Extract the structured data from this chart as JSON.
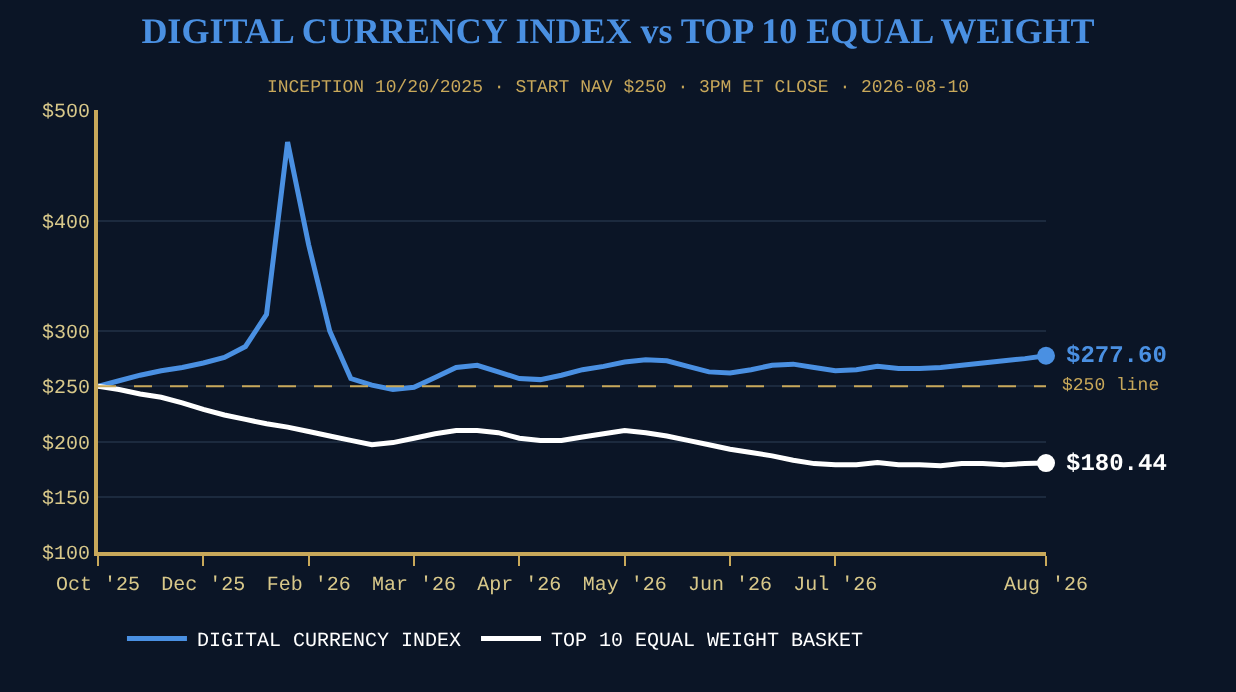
{
  "chart_data": {
    "type": "line",
    "title": "DIGITAL CURRENCY INDEX vs TOP 10 EQUAL WEIGHT",
    "subtitle": "INCEPTION 10/20/2025 · START NAV $250 · 3PM ET CLOSE · 2026-08-10",
    "categories": [
      "Oct '25",
      null,
      null,
      null,
      null,
      "Dec '25",
      null,
      null,
      null,
      null,
      "Feb '26",
      null,
      null,
      null,
      null,
      "Mar '26",
      null,
      null,
      null,
      null,
      "Apr '26",
      null,
      null,
      null,
      null,
      "May '26",
      null,
      null,
      null,
      null,
      "Jun '26",
      null,
      null,
      null,
      null,
      "Jul '26",
      null,
      null,
      null,
      null,
      null,
      null,
      null,
      null,
      null,
      "Aug '26"
    ],
    "series": [
      {
        "name": "DIGITAL CURRENCY INDEX",
        "color": "#4a90e2",
        "values": [
          250,
          255,
          260,
          264,
          267,
          271,
          276,
          286,
          315,
          471,
          378,
          300,
          257,
          251,
          247,
          249,
          258,
          267,
          269,
          263,
          257,
          256,
          260,
          265,
          268,
          272,
          274,
          273,
          268,
          263,
          262,
          265,
          269,
          270,
          267,
          264,
          265,
          268,
          266,
          266,
          267,
          269,
          271,
          273,
          275,
          277.6
        ],
        "value_labels": [
          null,
          null,
          null,
          null,
          null,
          null,
          null,
          null,
          null,
          null,
          null,
          null,
          null,
          null,
          null,
          null,
          null,
          null,
          null,
          null,
          null,
          null,
          null,
          null,
          null,
          null,
          null,
          null,
          null,
          null,
          null,
          null,
          null,
          null,
          null,
          null,
          null,
          null,
          null,
          null,
          null,
          null,
          null,
          null,
          null,
          "$277.60"
        ]
      },
      {
        "name": "TOP 10 EQUAL WEIGHT BASKET",
        "color": "#ffffff",
        "values": [
          250,
          247,
          243,
          240,
          235,
          229,
          224,
          220,
          216,
          213,
          209,
          205,
          201,
          197,
          199,
          203,
          207,
          210,
          210,
          208,
          203,
          201,
          201,
          204,
          207,
          210,
          208,
          205,
          201,
          197,
          193,
          190,
          187,
          183,
          180,
          179,
          179,
          181,
          179,
          179,
          178,
          180,
          180,
          179,
          180,
          180.44
        ],
        "value_labels": [
          null,
          null,
          null,
          null,
          null,
          null,
          null,
          null,
          null,
          null,
          null,
          null,
          null,
          null,
          null,
          null,
          null,
          null,
          null,
          null,
          null,
          null,
          null,
          null,
          null,
          null,
          null,
          null,
          null,
          null,
          null,
          null,
          null,
          null,
          null,
          null,
          null,
          null,
          null,
          null,
          null,
          null,
          null,
          null,
          null,
          "$180.44"
        ]
      }
    ],
    "ylim": [
      100,
      500
    ],
    "yticks": [
      {
        "value": 100,
        "label": "$100"
      },
      {
        "value": 150,
        "label": "$150"
      },
      {
        "value": 200,
        "label": "$200"
      },
      {
        "value": 250,
        "label": "$250"
      },
      {
        "value": 300,
        "label": "$300"
      },
      {
        "value": 400,
        "label": "$400"
      },
      {
        "value": 500,
        "label": "$500"
      }
    ],
    "ref_lines": [
      {
        "axis": "y",
        "value": 250,
        "label": "$250 line",
        "color": "#c8a85a",
        "line_style": "dashed"
      }
    ],
    "grid": "y",
    "legend": "bottom",
    "marker": "none",
    "line_style": "solid"
  }
}
